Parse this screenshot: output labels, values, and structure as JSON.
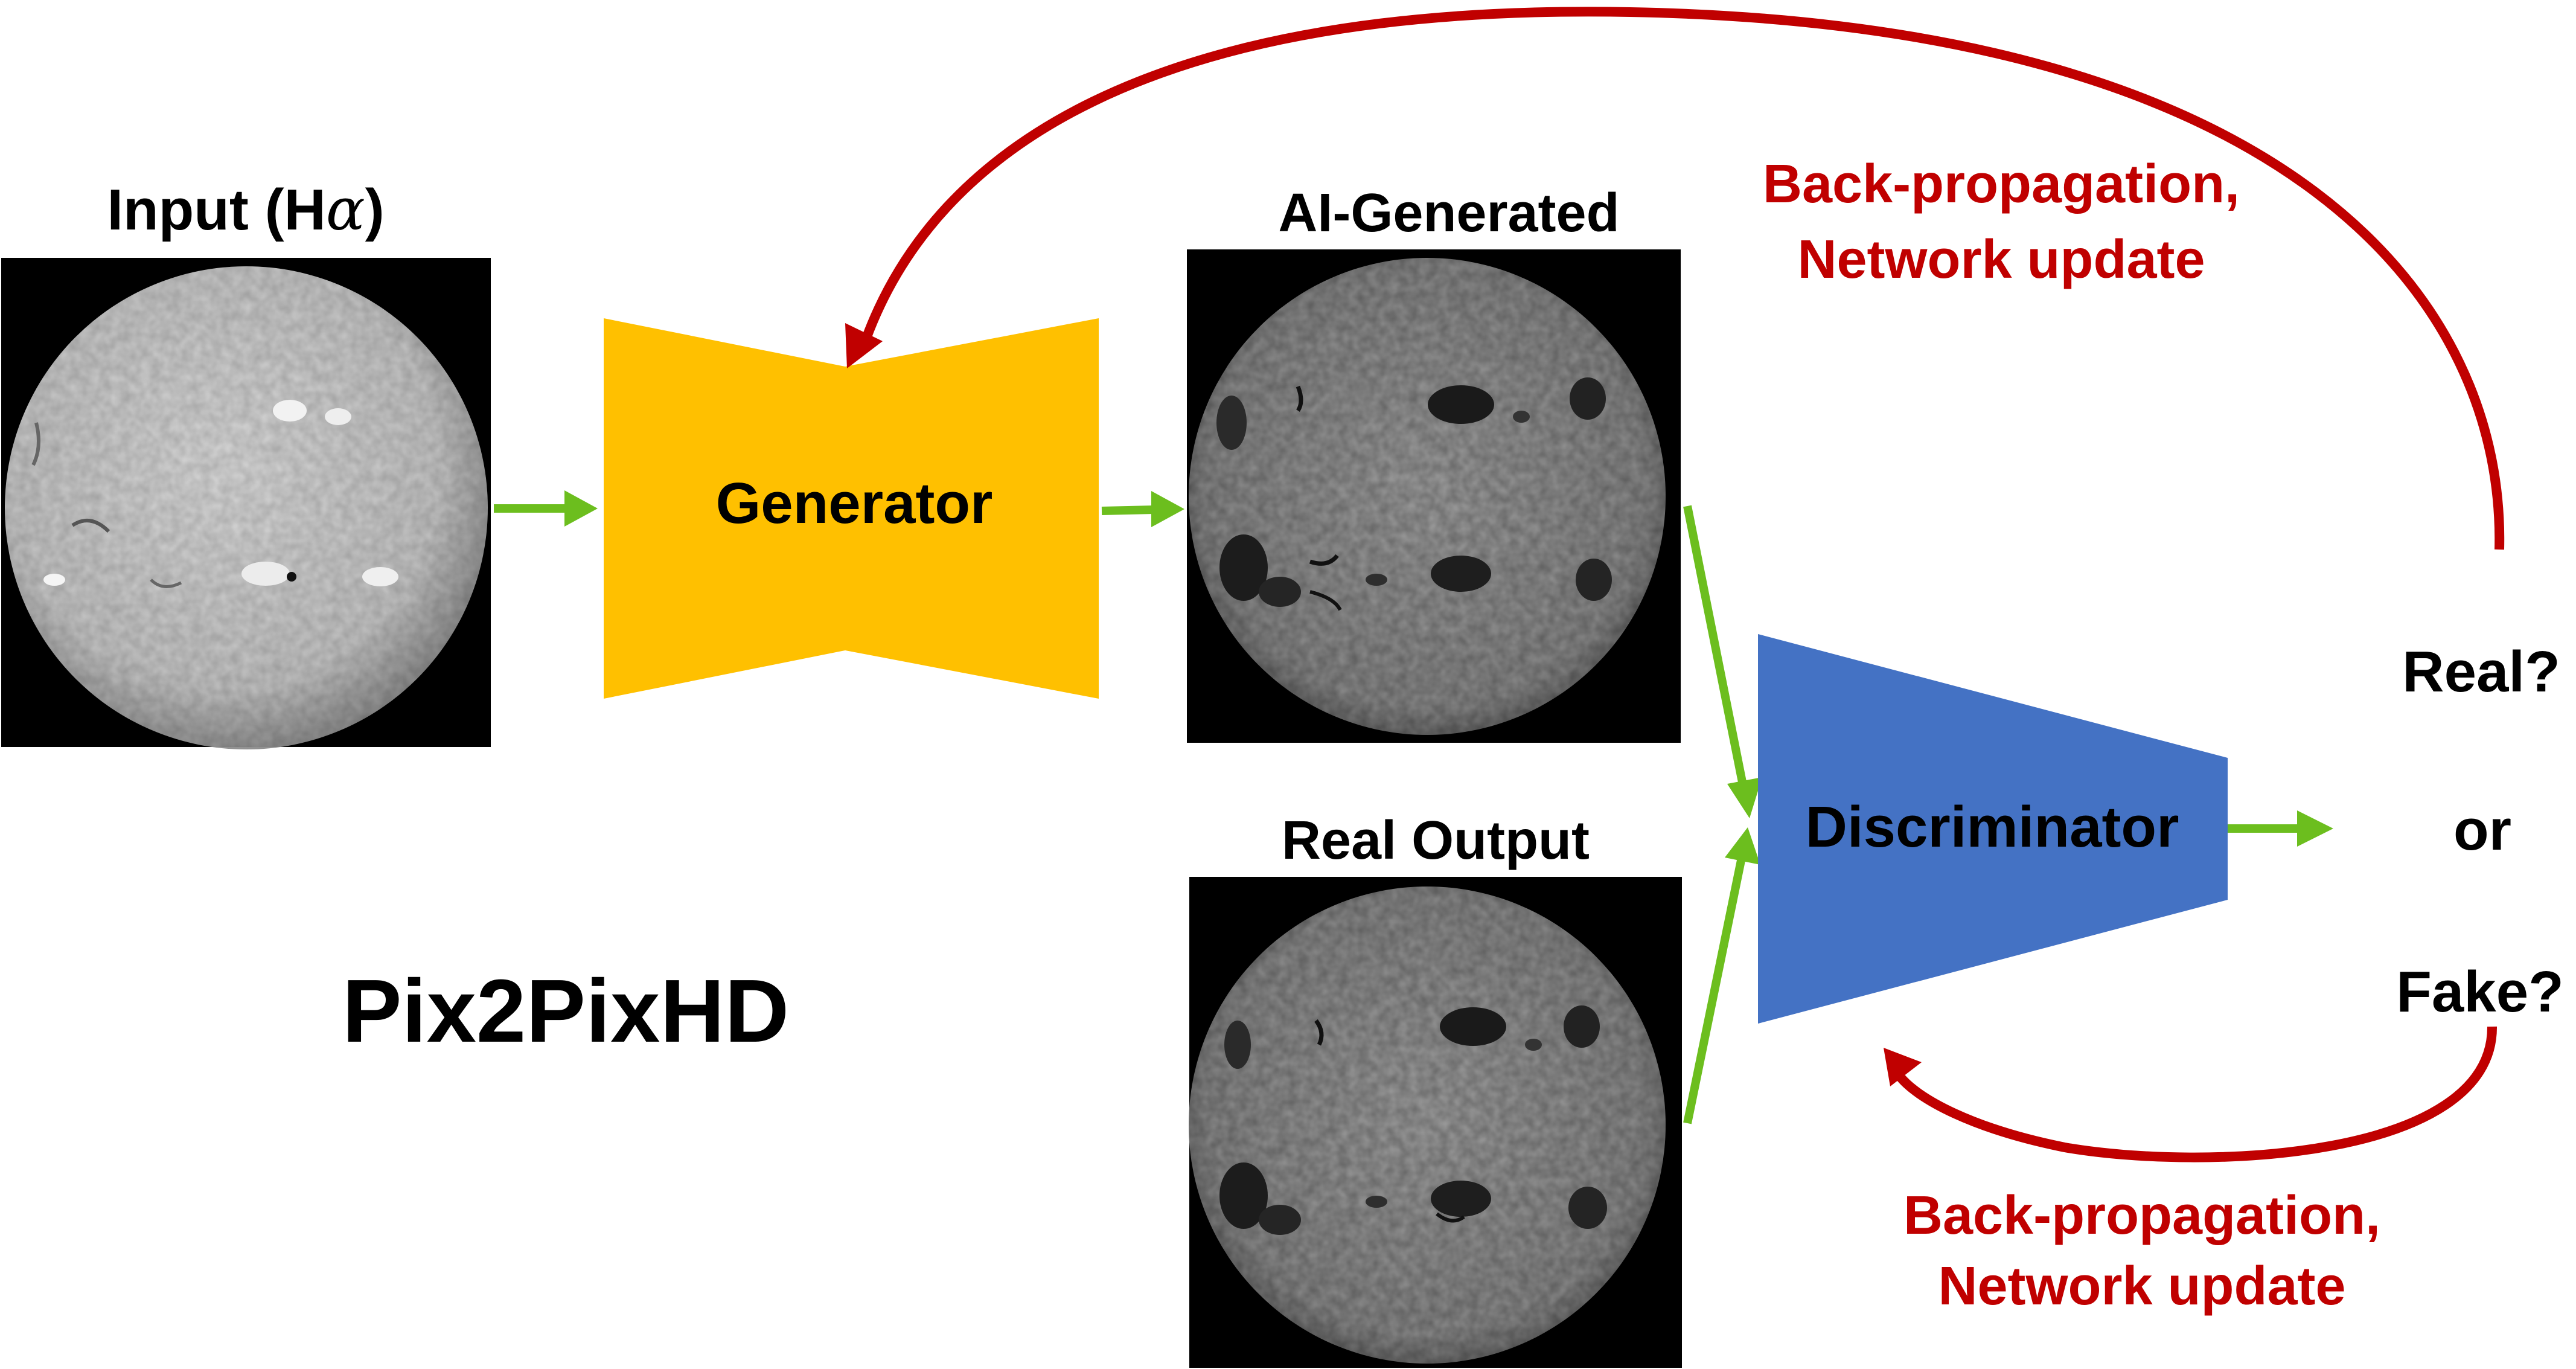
{
  "labels": {
    "input_prefix": "Input (H",
    "input_greek": "α",
    "input_suffix": ")",
    "ai_generated": "AI-Generated",
    "real_output": "Real Output",
    "generator": "Generator",
    "discriminator": "Discriminator",
    "real_q": "Real?",
    "or": "or",
    "fake_q": "Fake?",
    "model_name": "Pix2PixHD",
    "backprop_top_line1": "Back-propagation,",
    "backprop_top_line2": "Network update",
    "backprop_bottom_line1": "Back-propagation,",
    "backprop_bottom_line2": "Network update"
  },
  "colors": {
    "generator_fill": "#FFC000",
    "discriminator_fill": "#4472C4",
    "flow_arrow": "#6CBE1E",
    "feedback_arrow": "#C00000",
    "label_text": "#000000",
    "feedback_text": "#C00000",
    "panel_background": "#000000"
  },
  "images": {
    "input": "solar disk, H-alpha, light gray",
    "ai_generated": "solar disk, magnetogram-like, gray with dark active regions",
    "real_output": "solar disk, magnetogram-like, gray with dark active regions"
  }
}
